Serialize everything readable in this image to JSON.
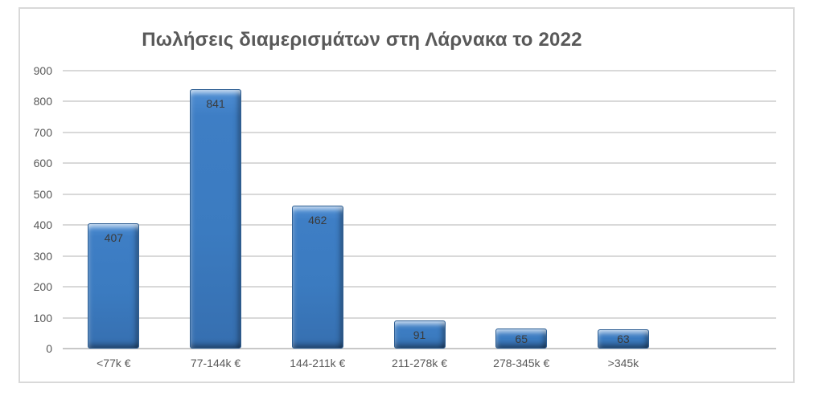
{
  "chart_data": {
    "type": "bar",
    "title": "Πωλήσεις διαμερισμάτων στη Λάρνακα το 2022",
    "categories": [
      "<77k €",
      "77-144k €",
      "144-211k €",
      "211-278k €",
      "278-345k €",
      ">345k"
    ],
    "values": [
      407,
      841,
      462,
      91,
      65,
      63
    ],
    "xlabel": "",
    "ylabel": "",
    "ylim": [
      0,
      900
    ],
    "yticks": [
      0,
      100,
      200,
      300,
      400,
      500,
      600,
      700,
      800,
      900
    ],
    "grid": true,
    "legend": false,
    "empty_trailing_slots": 1,
    "colors": {
      "bar_fill": "#3b7bc0",
      "bar_fill_highlight": "#6fa3dc",
      "bar_fill_shadow": "#366fb0",
      "bar_edge": "#2d5e93",
      "gridline": "#d9d9d9",
      "axis_line": "#c8c8c8",
      "frame_border": "#d9d9d9",
      "title_color": "#595959",
      "tick_label_color": "#595959",
      "value_label_color": "#3b3b3b",
      "background": "#ffffff"
    }
  }
}
